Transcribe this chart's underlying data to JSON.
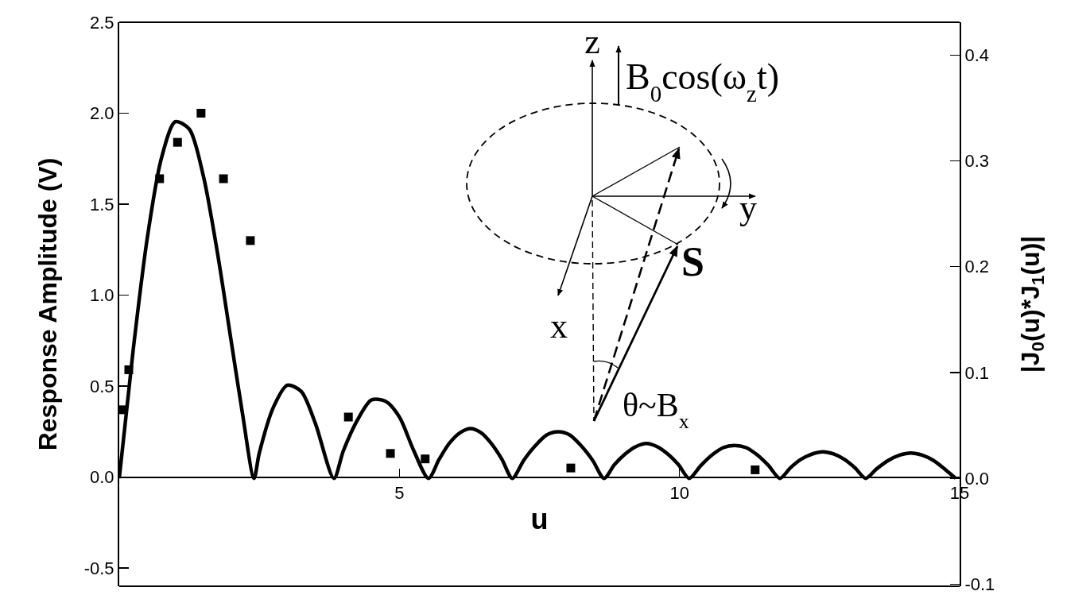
{
  "chart_data": {
    "type": "scatter",
    "xlabel": "u",
    "ylabel": "Response Amplitude (V)",
    "y2label": "|J$_{0}$(u)*J$_{1}$(u)|",
    "xlim": [
      0,
      15
    ],
    "xticks": [
      5,
      10,
      15
    ],
    "ylim": [
      -0.6,
      2.5
    ],
    "yticks": [
      -0.5,
      {
        "value": 0,
        "label": "0.0"
      },
      0.5,
      {
        "value": 1,
        "label": "1.0"
      },
      1.5,
      {
        "value": 2,
        "label": "2.0"
      },
      2.5
    ],
    "y2lim": [
      -0.102,
      0.431
    ],
    "y2ticks": [
      -0.1,
      {
        "value": 0,
        "label": "0.0"
      },
      0.1,
      0.2,
      0.3,
      0.4
    ],
    "grid": false,
    "annotations": [
      "z",
      "B$_{0}$cos(ω$_{z}$t)",
      "y",
      "S",
      "x",
      "θ~B$_{x}$"
    ],
    "series": [
      {
        "color": "#000000",
        "marker": "square",
        "x": [
          0.07,
          0.17,
          0.72,
          1.04,
          1.46,
          1.86,
          2.34,
          4.09,
          4.84,
          5.46,
          8.06,
          11.35
        ],
        "values": [
          0.37,
          0.59,
          1.64,
          1.84,
          2.0,
          1.64,
          1.3,
          0.33,
          0.13,
          0.1,
          0.05,
          0.04
        ]
      },
      {
        "type": "line",
        "axis": "y2",
        "color": "#000000",
        "marker": "none",
        "line_style": "solid",
        "x": [
          0,
          0.25,
          0.5,
          0.75,
          1.0,
          1.25,
          1.5,
          1.75,
          2.0,
          2.2,
          2.405,
          2.5,
          2.75,
          3.0,
          3.25,
          3.5,
          3.832,
          4.0,
          4.25,
          4.5,
          4.75,
          5.0,
          5.25,
          5.52,
          5.71,
          5.89,
          6.08,
          6.27,
          6.46,
          6.64,
          6.83,
          7.016,
          7.22,
          7.43,
          7.63,
          7.835,
          8.04,
          8.24,
          8.45,
          8.654,
          8.84,
          9.03,
          9.22,
          9.41,
          9.6,
          9.79,
          9.98,
          10.173,
          10.38,
          10.58,
          10.78,
          10.98,
          11.19,
          11.39,
          11.59,
          11.792,
          11.98,
          12.17,
          12.37,
          12.56,
          12.75,
          12.94,
          13.13,
          13.324,
          13.52,
          13.73,
          13.93,
          14.13,
          14.33,
          14.53,
          14.73,
          14.931
        ],
        "values": [
          0,
          0.122,
          0.227,
          0.302,
          0.337,
          0.33,
          0.286,
          0.214,
          0.129,
          0.061,
          0,
          0.024,
          0.067,
          0.088,
          0.082,
          0.052,
          0,
          0.026,
          0.055,
          0.074,
          0.073,
          0.058,
          0.027,
          0,
          0.018,
          0.033,
          0.043,
          0.047,
          0.043,
          0.033,
          0.018,
          0,
          0.017,
          0.031,
          0.041,
          0.044,
          0.041,
          0.031,
          0.017,
          0,
          0.013,
          0.023,
          0.03,
          0.033,
          0.03,
          0.023,
          0.013,
          0,
          0.012,
          0.022,
          0.029,
          0.031,
          0.029,
          0.022,
          0.012,
          0,
          0.01,
          0.018,
          0.023,
          0.025,
          0.023,
          0.018,
          0.01,
          0,
          0.009,
          0.017,
          0.022,
          0.024,
          0.022,
          0.017,
          0.009,
          0
        ]
      }
    ]
  }
}
